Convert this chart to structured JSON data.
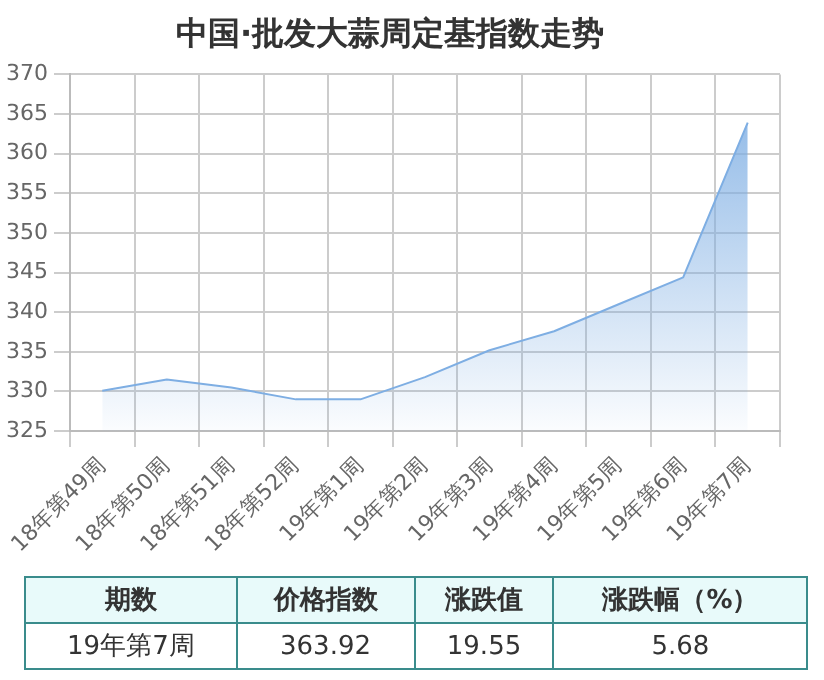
{
  "chart_data": {
    "type": "area",
    "title": "中国·批发大蒜周定基指数走势",
    "categories": [
      "18年第49周",
      "18年第50周",
      "18年第51周",
      "18年第52周",
      "19年第1周",
      "19年第2周",
      "19年第3周",
      "19年第4周",
      "19年第5周",
      "19年第6周",
      "19年第7周"
    ],
    "series": [
      {
        "color": "#7eaee3",
        "values": [
          330.1,
          331.5,
          330.5,
          329,
          329,
          331.8,
          335.2,
          337.6,
          341,
          344.4,
          363.92
        ]
      }
    ],
    "ylim": [
      325,
      370
    ],
    "yticks": [
      325,
      330,
      335,
      340,
      345,
      350,
      355,
      360,
      365,
      370
    ],
    "grid": true,
    "legend": false,
    "annotations": [
      "期数",
      "价格指数",
      "涨跌值",
      "涨跌幅（%）",
      "19年第7周",
      "363.92",
      "19.55",
      "5.68"
    ]
  }
}
